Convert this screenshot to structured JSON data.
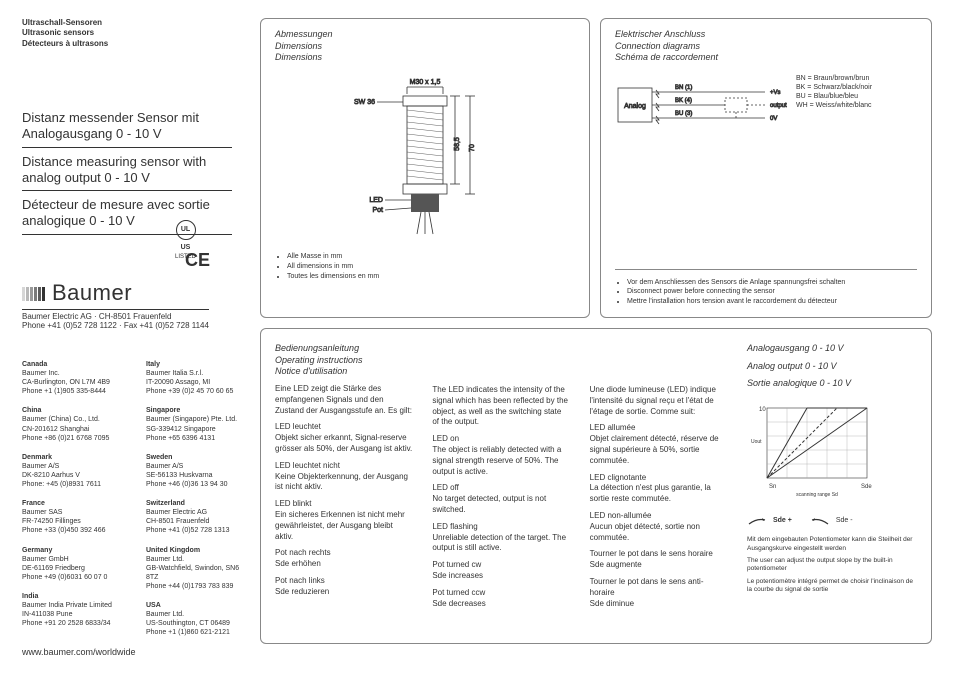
{
  "header": {
    "cat_de": "Ultraschall-Sensoren",
    "cat_en": "Ultrasonic sensors",
    "cat_fr": "Détecteurs à ultrasons"
  },
  "titles": {
    "de": "Distanz messender Sensor mit Analogausgang 0 - 10 V",
    "en": "Distance measuring sensor with analog output 0 - 10 V",
    "fr": "Détecteur de mesure avec sortie analogique 0 - 10 V"
  },
  "certifications": {
    "ul_sub": "LISTED",
    "ce": "CE"
  },
  "brand": {
    "name": "Baumer",
    "sub1": "Baumer Electric AG · CH-8501 Frauenfeld",
    "sub2": "Phone +41 (0)52 728 1122 · Fax +41 (0)52 728 1144"
  },
  "offices_left": [
    {
      "c": "Canada",
      "l1": "Baumer Inc.",
      "l2": "CA-Burlington, ON L7M 4B9",
      "l3": "Phone +1 (1)905 335-8444"
    },
    {
      "c": "China",
      "l1": "Baumer (China) Co., Ltd.",
      "l2": "CN-201612 Shanghai",
      "l3": "Phone +86 (0)21 6768 7095"
    },
    {
      "c": "Denmark",
      "l1": "Baumer A/S",
      "l2": "DK-8210 Aarhus V",
      "l3": "Phone: +45 (0)8931 7611"
    },
    {
      "c": "France",
      "l1": "Baumer SAS",
      "l2": "FR-74250 Fillinges",
      "l3": "Phone +33 (0)450 392 466"
    },
    {
      "c": "Germany",
      "l1": "Baumer GmbH",
      "l2": "DE-61169 Friedberg",
      "l3": "Phone +49 (0)6031 60 07 0"
    },
    {
      "c": "India",
      "l1": "Baumer India Private Limited",
      "l2": "IN-411038 Pune",
      "l3": "Phone +91 20 2528 6833/34"
    }
  ],
  "offices_right": [
    {
      "c": "Italy",
      "l1": "Baumer Italia S.r.l.",
      "l2": "IT-20090 Assago, MI",
      "l3": "Phone +39 (0)2 45 70 60 65"
    },
    {
      "c": "Singapore",
      "l1": "Baumer (Singapore) Pte. Ltd.",
      "l2": "SG-339412 Singapore",
      "l3": "Phone +65 6396 4131"
    },
    {
      "c": "Sweden",
      "l1": "Baumer A/S",
      "l2": "SE-56133 Huskvarna",
      "l3": "Phone +46 (0)36 13 94 30"
    },
    {
      "c": "Switzerland",
      "l1": "Baumer Electric AG",
      "l2": "CH-8501 Frauenfeld",
      "l3": "Phone +41 (0)52 728 1313"
    },
    {
      "c": "United Kingdom",
      "l1": "Baumer Ltd.",
      "l2": "GB-Watchfield, Swindon, SN6 8TZ",
      "l3": "Phone +44 (0)1793 783 839"
    },
    {
      "c": "USA",
      "l1": "Baumer Ltd.",
      "l2": "US-Southington, CT 06489",
      "l3": "Phone +1 (1)860 621-2121"
    }
  ],
  "url": "www.baumer.com/worldwide",
  "dims": {
    "h_de": "Abmessungen",
    "h_en": "Dimensions",
    "h_fr": "Dimensions",
    "thread": "M30 x 1,5",
    "sw": "SW 36",
    "h1": "58,5",
    "h2": "70",
    "led": "LED",
    "pot": "Pot",
    "note_de": "Alle Masse in mm",
    "note_en": "All dimensions in mm",
    "note_fr": "Toutes les dimensions en mm"
  },
  "conn": {
    "h_de": "Elektrischer Anschluss",
    "h_en": "Connection diagrams",
    "h_fr": "Schéma de raccordement",
    "box": "Analog",
    "bn": "BN (1)",
    "bk": "BK (4)",
    "bu": "BU (3)",
    "vs": "+Vs",
    "out": "output",
    "zero": "0V",
    "leg_bn": "BN = Braun/brown/brun",
    "leg_bk": "BK = Schwarz/black/noir",
    "leg_bu": "BU = Blau/blue/bleu",
    "leg_wh": "WH = Weiss/white/blanc",
    "warn_de": "Vor dem Anschliessen des Sensors die Anlage spannungsfrei schalten",
    "warn_en": "Disconnect power before connecting the sensor",
    "warn_fr": "Mettre l'installation hors tension avant le raccordement du détecteur"
  },
  "instr": {
    "h_de": "Bedienungsanleitung",
    "h_en": "Operating instructions",
    "h_fr": "Notice d'utilisation",
    "de_intro": "Eine LED zeigt die Stärke des empfangenen Signals und den Zustand der Ausgangsstufe an. Es gilt:",
    "de_s1_t": "LED leuchtet",
    "de_s1": "Objekt sicher erkannt, Signal-reserve grösser als 50%, der Ausgang ist aktiv.",
    "de_s2_t": "LED leuchtet nicht",
    "de_s2": "Keine Objekterkennung, der Ausgang ist nicht aktiv.",
    "de_s3_t": "LED blinkt",
    "de_s3": "Ein sicheres Erkennen ist nicht mehr gewährleistet, der Ausgang bleibt aktiv.",
    "de_s4_t": "Pot nach rechts",
    "de_s4": "Sde erhöhen",
    "de_s5_t": "Pot nach links",
    "de_s5": "Sde reduzieren",
    "en_intro": "The LED indicates the intensity of the signal which has been reflected by the object, as well as the switching state of the output.",
    "en_s1_t": "LED on",
    "en_s1": "The object is reliably detected with a signal strength reserve of 50%. The output is active.",
    "en_s2_t": "LED off",
    "en_s2": "No target detected, output is not switched.",
    "en_s3_t": "LED flashing",
    "en_s3": "Unreliable detection of the target. The output is still active.",
    "en_s4_t": "Pot turned cw",
    "en_s4": "Sde increases",
    "en_s5_t": "Pot turned ccw",
    "en_s5": "Sde decreases",
    "fr_intro": "Une diode lumineuse (LED) indique l'intensité du signal reçu et l'état de l'étage de sortie. Comme suit:",
    "fr_s1_t": "LED allumée",
    "fr_s1": "Objet clairement détecté, réserve de signal supérieure à 50%, sortie commutée.",
    "fr_s2_t": "LED clignotante",
    "fr_s2": "La détection n'est plus garantie, la sortie reste commutée.",
    "fr_s3_t": "LED non-allumée",
    "fr_s3": "Aucun objet détecté, sortie non commutée.",
    "fr_s4_t": "Tourner le pot dans le sens horaire",
    "fr_s4": "Sde augmente",
    "fr_s5_t": "Tourner le pot dans le sens anti-horaire",
    "fr_s5": "Sde diminue",
    "out_h_de": "Analogausgang  0 - 10 V",
    "out_h_en": "Analog output 0 - 10 V",
    "out_h_fr": "Sortie analogique 0 - 10 V",
    "chart": {
      "y_max": "10",
      "y_lbl": "Uout",
      "x_lbl": "scanning range Sd",
      "x0": "Sn",
      "x1": "Sde"
    },
    "sde_plus": "Sde +",
    "sde_minus": "Sde -",
    "foot_de": "Mit dem eingebauten Potentiometer kann die Steilheit der Ausgangskurve eingestellt werden",
    "foot_en": "The user can adjust the output slope by the built-in potentiometer",
    "foot_fr": "Le potentiomètre intégré permet de choisir l'inclinaison de la courbe du signal de sortie"
  }
}
